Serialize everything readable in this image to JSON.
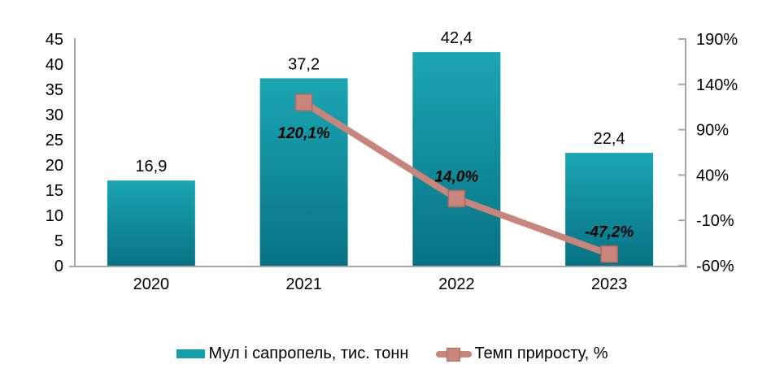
{
  "chart_data": {
    "type": "combo",
    "title": "",
    "categories": [
      "2020",
      "2021",
      "2022",
      "2023"
    ],
    "series": [
      {
        "name": "Мул і сапропель, тис. тонн",
        "type": "bar",
        "axis": "left",
        "values": [
          16.9,
          37.2,
          42.4,
          22.4
        ],
        "value_labels": [
          "16,9",
          "37,2",
          "42,4",
          "22,4"
        ],
        "color_top": "#1ba6b2",
        "color_bottom": "#077284",
        "legend_color": "#11a0ab"
      },
      {
        "name": "Темп приросту, %",
        "type": "line",
        "axis": "right",
        "values": [
          null,
          120.1,
          14.0,
          -47.2
        ],
        "value_labels": [
          "",
          "120,1%",
          "14,0%",
          "-47,2%"
        ],
        "label_positions": [
          "",
          "below",
          "above",
          "above"
        ],
        "color": "#c9857b",
        "marker_color": "#c9857b",
        "marker_border": "#b26a60"
      }
    ],
    "left_axis": {
      "min": 0,
      "max": 45,
      "step": 5,
      "tick_values": [
        0,
        5,
        10,
        15,
        20,
        25,
        30,
        35,
        40,
        45
      ],
      "tick_labels": [
        "0",
        "5",
        "10",
        "15",
        "20",
        "25",
        "30",
        "35",
        "40",
        "45"
      ]
    },
    "right_axis": {
      "min": -60,
      "max": 190,
      "step": 50,
      "tick_values": [
        -60,
        -10,
        40,
        90,
        140,
        190
      ],
      "tick_labels": [
        "-60%",
        "-10%",
        "40%",
        "90%",
        "140%",
        "190%"
      ]
    },
    "axis_color": "#a6a6a6",
    "text_color": "#000000",
    "grid": false,
    "legend_position": "bottom"
  }
}
